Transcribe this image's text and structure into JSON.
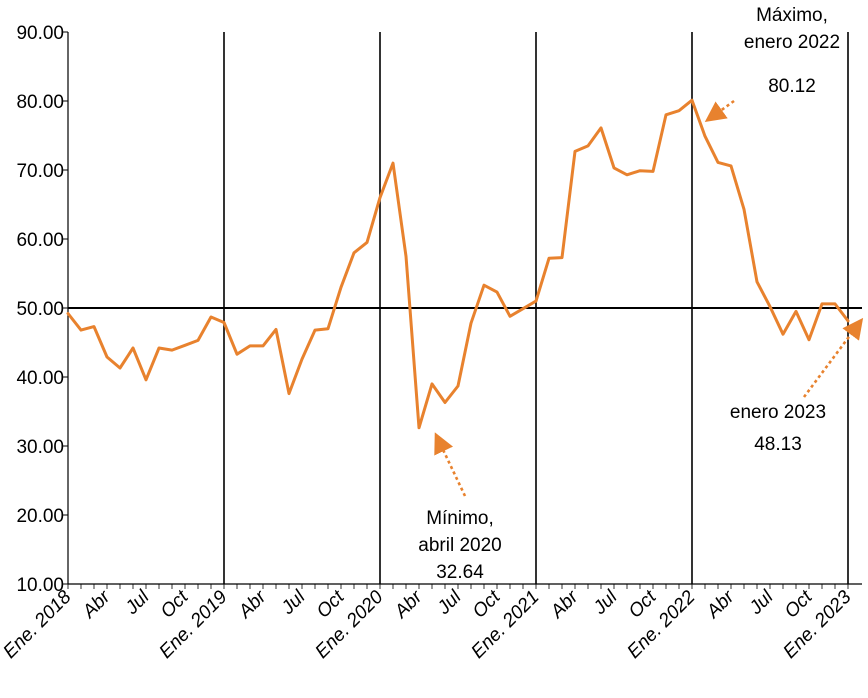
{
  "chart_data": {
    "type": "line",
    "title": "",
    "xlabel": "",
    "ylabel": "",
    "ylim": [
      10,
      90
    ],
    "yticks": [
      "10.00",
      "20.00",
      "30.00",
      "40.00",
      "50.00",
      "60.00",
      "70.00",
      "80.00",
      "90.00"
    ],
    "reference_line": 50,
    "grid": false,
    "line_color": "#E8822E",
    "x": [
      "2018-01",
      "2018-02",
      "2018-03",
      "2018-04",
      "2018-05",
      "2018-06",
      "2018-07",
      "2018-08",
      "2018-09",
      "2018-10",
      "2018-11",
      "2018-12",
      "2019-01",
      "2019-02",
      "2019-03",
      "2019-04",
      "2019-05",
      "2019-06",
      "2019-07",
      "2019-08",
      "2019-09",
      "2019-10",
      "2019-11",
      "2019-12",
      "2020-01",
      "2020-02",
      "2020-03",
      "2020-04",
      "2020-05",
      "2020-06",
      "2020-07",
      "2020-08",
      "2020-09",
      "2020-10",
      "2020-11",
      "2020-12",
      "2021-01",
      "2021-02",
      "2021-03",
      "2021-04",
      "2021-05",
      "2021-06",
      "2021-07",
      "2021-08",
      "2021-09",
      "2021-10",
      "2021-11",
      "2021-12",
      "2022-01",
      "2022-02",
      "2022-03",
      "2022-04",
      "2022-05",
      "2022-06",
      "2022-07",
      "2022-08",
      "2022-09",
      "2022-10",
      "2022-11",
      "2022-12",
      "2023-01"
    ],
    "series": [
      {
        "values": [
          49.2,
          46.8,
          47.3,
          42.9,
          41.3,
          44.2,
          39.6,
          44.2,
          43.9,
          44.6,
          45.3,
          48.7,
          47.9,
          43.3,
          44.5,
          44.5,
          46.9,
          37.6,
          42.6,
          46.8,
          47.0,
          53.0,
          58.0,
          59.5,
          66.0,
          71.0,
          57.5,
          32.64,
          39.0,
          36.3,
          38.7,
          47.8,
          53.3,
          52.3,
          48.8,
          49.9,
          51.0,
          57.2,
          57.3,
          72.7,
          73.5,
          76.1,
          70.3,
          69.3,
          69.9,
          69.8,
          78.0,
          78.6,
          80.12,
          74.9,
          71.1,
          70.6,
          64.3,
          53.8,
          50.2,
          46.2,
          49.5,
          45.4,
          50.6,
          50.6,
          48.13
        ]
      }
    ],
    "x_tick_labels": [
      {
        "label": "Ene. 2018",
        "at": "2018-01"
      },
      {
        "label": "Abr",
        "at": "2018-04"
      },
      {
        "label": "Jul",
        "at": "2018-07"
      },
      {
        "label": "Oct",
        "at": "2018-10"
      },
      {
        "label": "Ene. 2019",
        "at": "2019-01"
      },
      {
        "label": "Abr",
        "at": "2019-04"
      },
      {
        "label": "Jul",
        "at": "2019-07"
      },
      {
        "label": "Oct",
        "at": "2019-10"
      },
      {
        "label": "Ene. 2020",
        "at": "2020-01"
      },
      {
        "label": "Abr",
        "at": "2020-04"
      },
      {
        "label": "Jul",
        "at": "2020-07"
      },
      {
        "label": "Oct",
        "at": "2020-10"
      },
      {
        "label": "Ene. 2021",
        "at": "2021-01"
      },
      {
        "label": "Abr",
        "at": "2021-04"
      },
      {
        "label": "Jul",
        "at": "2021-07"
      },
      {
        "label": "Oct",
        "at": "2021-10"
      },
      {
        "label": "Ene. 2022",
        "at": "2022-01"
      },
      {
        "label": "Abr",
        "at": "2022-04"
      },
      {
        "label": "Jul",
        "at": "2022-07"
      },
      {
        "label": "Oct",
        "at": "2022-10"
      },
      {
        "label": "Ene. 2023",
        "at": "2023-01"
      }
    ],
    "year_dividers": [
      "2019-01",
      "2020-01",
      "2021-01",
      "2022-01",
      "2023-01"
    ],
    "annotations": [
      {
        "id": "max",
        "lines": [
          "Máximo,",
          "enero 2022",
          "80.12"
        ],
        "point": "2022-01"
      },
      {
        "id": "min",
        "lines": [
          "Mínimo,",
          "abril 2020",
          "32.64"
        ],
        "point": "2020-04"
      },
      {
        "id": "last",
        "lines": [
          "enero 2023",
          "48.13"
        ],
        "point": "2023-01"
      }
    ]
  }
}
